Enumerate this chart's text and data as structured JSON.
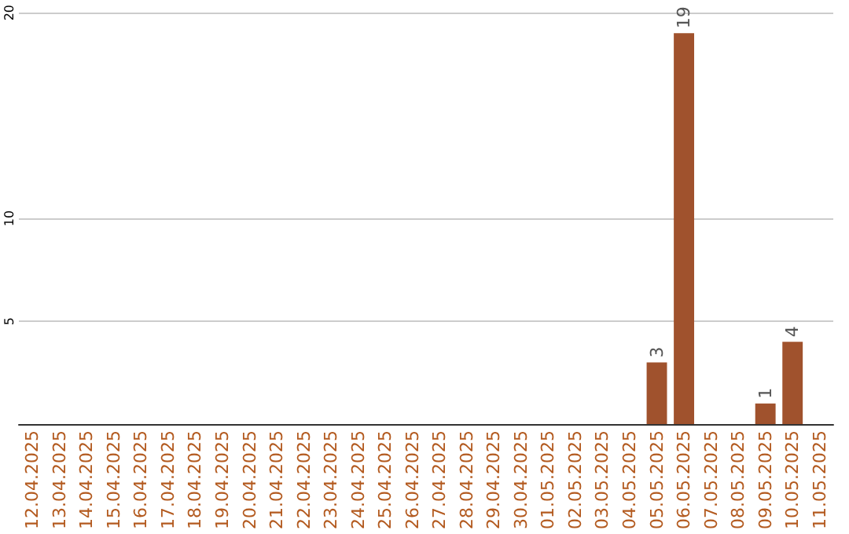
{
  "chart_data": {
    "type": "bar",
    "categories": [
      "12.04.2025",
      "13.04.2025",
      "14.04.2025",
      "15.04.2025",
      "16.04.2025",
      "17.04.2025",
      "18.04.2025",
      "19.04.2025",
      "20.04.2025",
      "21.04.2025",
      "22.04.2025",
      "23.04.2025",
      "24.04.2025",
      "25.04.2025",
      "26.04.2025",
      "27.04.2025",
      "28.04.2025",
      "29.04.2025",
      "30.04.2025",
      "01.05.2025",
      "02.05.2025",
      "03.05.2025",
      "04.05.2025",
      "05.05.2025",
      "06.05.2025",
      "07.05.2025",
      "08.05.2025",
      "09.05.2025",
      "10.05.2025",
      "11.05.2025"
    ],
    "values": [
      0,
      0,
      0,
      0,
      0,
      0,
      0,
      0,
      0,
      0,
      0,
      0,
      0,
      0,
      0,
      0,
      0,
      0,
      0,
      0,
      0,
      0,
      0,
      3,
      19,
      0,
      0,
      1,
      4,
      0
    ],
    "value_labels": [
      null,
      null,
      null,
      null,
      null,
      null,
      null,
      null,
      null,
      null,
      null,
      null,
      null,
      null,
      null,
      null,
      null,
      null,
      null,
      null,
      null,
      null,
      null,
      "3",
      "19",
      null,
      null,
      "1",
      "4",
      null
    ],
    "color": "#a0522d",
    "ylim": [
      0,
      20
    ],
    "yticks": [
      5,
      10,
      20
    ],
    "grid": "y"
  }
}
